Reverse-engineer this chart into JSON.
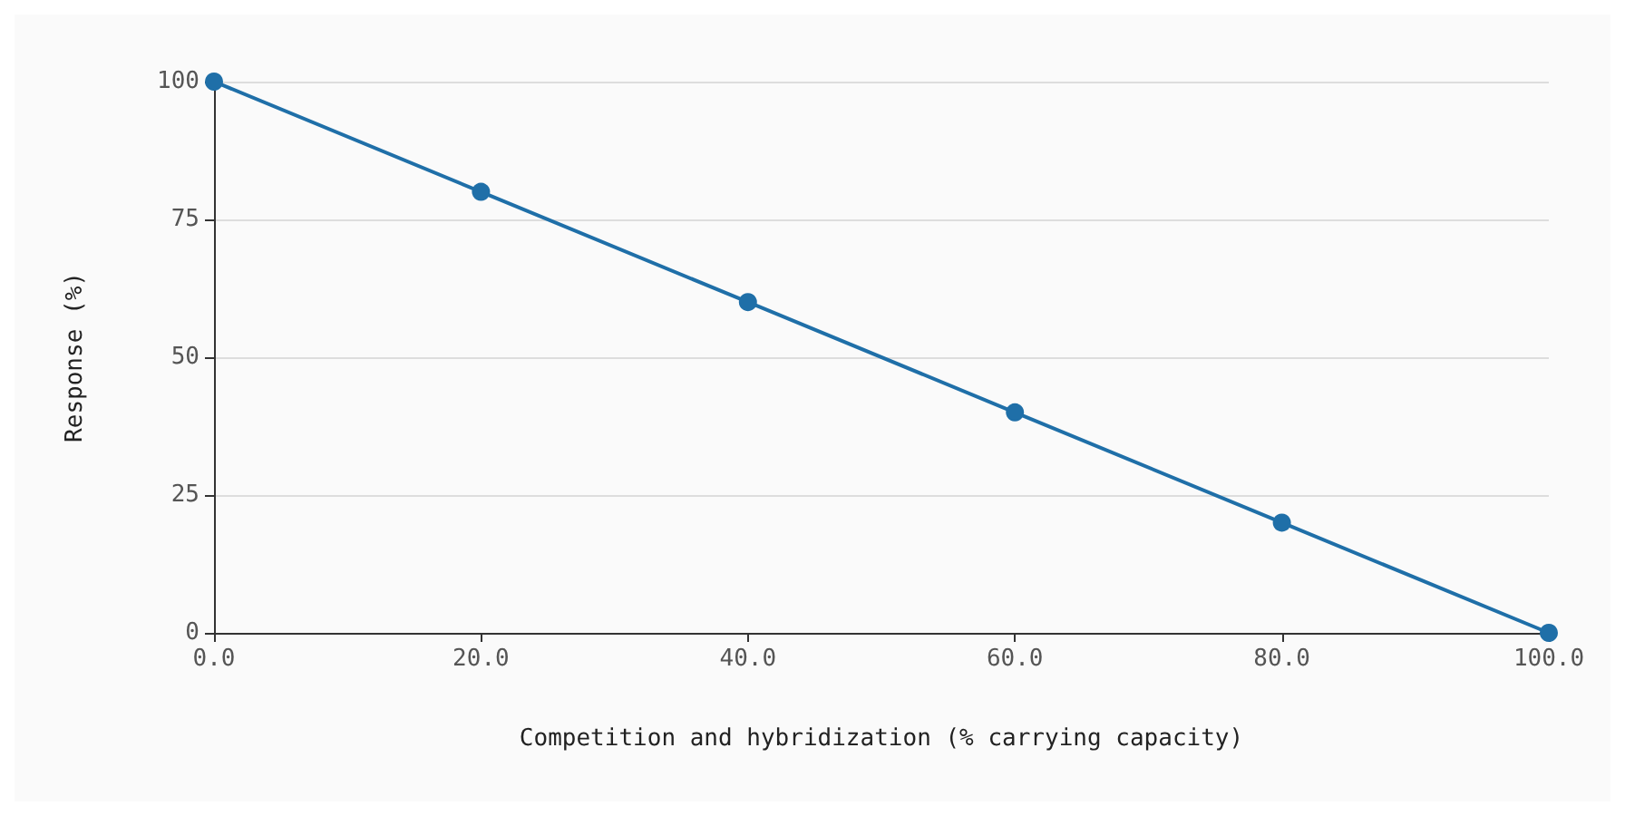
{
  "chart_data": {
    "type": "line",
    "xlabel": "Competition and hybridization (% carrying capacity)",
    "ylabel": "Response (%)",
    "x": [
      0,
      20,
      40,
      60,
      80,
      100
    ],
    "series": [
      {
        "color": "#1f6fa8",
        "values": [
          100,
          80,
          60,
          40,
          20,
          0
        ]
      }
    ],
    "xlim": [
      0,
      100
    ],
    "xticks": [
      {
        "value": 0,
        "label": "0.0"
      },
      {
        "value": 20,
        "label": "20.0"
      },
      {
        "value": 40,
        "label": "40.0"
      },
      {
        "value": 60,
        "label": "60.0"
      },
      {
        "value": 80,
        "label": "80.0"
      },
      {
        "value": 100,
        "label": "100.0"
      }
    ],
    "ylim": [
      0,
      100
    ],
    "yticks": [
      0,
      25,
      50,
      75,
      100
    ],
    "grid": "y",
    "marker": "circle",
    "line_style": "solid"
  }
}
